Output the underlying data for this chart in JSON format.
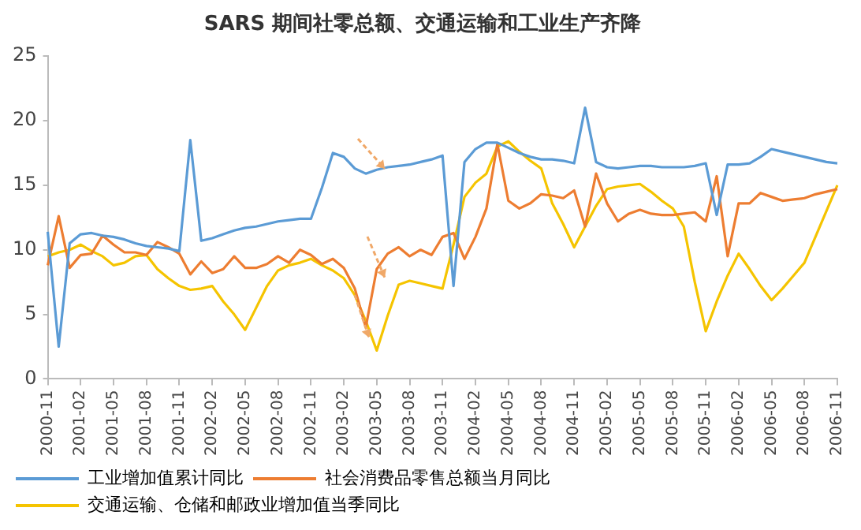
{
  "chart_data": {
    "type": "line",
    "title": "SARS 期间社零总额、交通运输和工业生产齐降",
    "categories": [
      "2000-11",
      null,
      null,
      "2001-02",
      null,
      null,
      "2001-05",
      null,
      null,
      "2001-08",
      null,
      null,
      "2001-11",
      null,
      null,
      "2002-02",
      null,
      null,
      "2002-05",
      null,
      null,
      "2002-08",
      null,
      null,
      "2002-11",
      null,
      null,
      "2003-02",
      null,
      null,
      "2003-05",
      null,
      null,
      "2003-08",
      null,
      null,
      "2003-11",
      null,
      null,
      "2004-02",
      null,
      null,
      "2004-05",
      null,
      null,
      "2004-08",
      null,
      null,
      "2004-11",
      null,
      null,
      "2005-02",
      null,
      null,
      "2005-05",
      null,
      null,
      "2005-08",
      null,
      null,
      "2005-11",
      null,
      null,
      "2006-02",
      null,
      null,
      "2006-05",
      null,
      null,
      "2006-08",
      null,
      null,
      "2006-11"
    ],
    "series": [
      {
        "name": "工业增加值累计同比",
        "color": "#5b9bd5",
        "values": [
          11.4,
          2.5,
          10.5,
          11.2,
          11.3,
          11.1,
          11.0,
          10.8,
          10.5,
          10.3,
          10.2,
          10.1,
          9.9,
          18.5,
          10.7,
          10.9,
          11.2,
          11.5,
          11.7,
          11.8,
          12.0,
          12.2,
          12.3,
          12.4,
          12.4,
          14.8,
          17.5,
          17.2,
          16.3,
          15.9,
          16.2,
          16.4,
          16.5,
          16.6,
          16.8,
          17.0,
          17.3,
          7.2,
          16.8,
          17.8,
          18.3,
          18.3,
          17.9,
          17.5,
          17.2,
          17.0,
          17.0,
          16.9,
          16.7,
          21.0,
          16.8,
          16.4,
          16.3,
          16.4,
          16.5,
          16.5,
          16.4,
          16.4,
          16.4,
          16.5,
          16.7,
          12.7,
          16.6,
          16.6,
          16.7,
          17.2,
          17.8,
          17.6,
          17.4,
          17.2,
          17.0,
          16.8,
          16.7
        ]
      },
      {
        "name": "社会消费品零售总额当月同比",
        "color": "#ed7d31",
        "values": [
          8.8,
          12.6,
          8.6,
          9.6,
          9.7,
          11.1,
          10.4,
          9.8,
          9.8,
          9.6,
          10.6,
          10.2,
          9.7,
          8.1,
          9.1,
          8.2,
          8.5,
          9.5,
          8.6,
          8.6,
          8.9,
          9.5,
          9.0,
          10.0,
          9.6,
          8.9,
          9.3,
          8.6,
          7.0,
          4.0,
          8.5,
          9.7,
          10.2,
          9.5,
          10.0,
          9.6,
          11.0,
          11.3,
          9.3,
          11.0,
          13.2,
          18.2,
          13.8,
          13.2,
          13.6,
          14.3,
          14.2,
          14.0,
          14.6,
          11.8,
          15.9,
          13.6,
          12.2,
          12.8,
          13.1,
          12.8,
          12.7,
          12.7,
          12.8,
          12.9,
          12.2,
          15.7,
          9.5,
          13.6,
          13.6,
          14.4,
          14.1,
          13.8,
          13.9,
          14.0,
          14.3,
          14.5,
          14.7
        ]
      },
      {
        "name": "交通运输、仓储和邮政业增加值当季同比",
        "color": "#f5c400",
        "values": [
          9.5,
          9.8,
          10.0,
          10.4,
          9.9,
          9.5,
          8.8,
          9.0,
          9.5,
          9.6,
          8.5,
          7.8,
          7.2,
          6.9,
          7.0,
          7.2,
          6.0,
          5.0,
          3.8,
          5.5,
          7.2,
          8.4,
          8.8,
          9.0,
          9.3,
          8.8,
          8.4,
          7.8,
          6.5,
          4.5,
          2.2,
          4.9,
          7.3,
          7.6,
          7.4,
          7.2,
          7.0,
          10.4,
          14.1,
          15.2,
          15.9,
          18.0,
          18.4,
          17.6,
          16.9,
          16.3,
          13.6,
          12.0,
          10.2,
          11.8,
          13.4,
          14.7,
          14.9,
          15.0,
          15.1,
          14.5,
          13.8,
          13.2,
          11.8,
          7.5,
          3.7,
          6.0,
          8.0,
          9.7,
          8.5,
          7.2,
          6.1,
          7.0,
          8.0,
          9.0,
          11.0,
          13.0,
          15.0
        ]
      }
    ],
    "ylim": [
      0,
      25
    ],
    "yticks": [
      0,
      5,
      10,
      15,
      20,
      25
    ],
    "grid": false,
    "legend": "bottom",
    "marker": "none",
    "line_style": "solid"
  }
}
